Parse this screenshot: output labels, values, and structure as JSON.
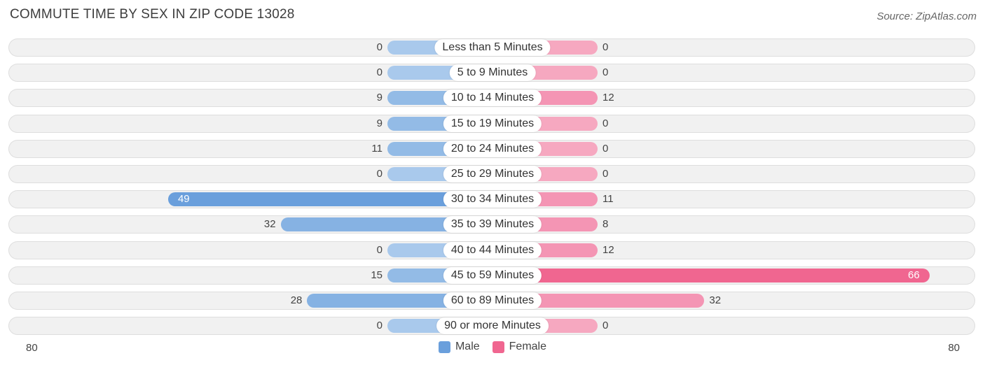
{
  "header": {
    "title": "COMMUTE TIME BY SEX IN ZIP CODE 13028",
    "source": "Source: ZipAtlas.com"
  },
  "colors": {
    "male_strong": "#6a9fdc",
    "male_light": "#a9c9ec",
    "female_strong": "#f06690",
    "female_light": "#f6a8c0"
  },
  "axis": {
    "left_label": "80",
    "right_label": "80"
  },
  "legend": {
    "male_label": "Male",
    "female_label": "Female"
  },
  "chart_data": {
    "type": "bar",
    "title": "COMMUTE TIME BY SEX IN ZIP CODE 13028",
    "orientation": "horizontal-diverging",
    "xlim": [
      -80,
      80
    ],
    "categories": [
      "Less than 5 Minutes",
      "5 to 9 Minutes",
      "10 to 14 Minutes",
      "15 to 19 Minutes",
      "20 to 24 Minutes",
      "25 to 29 Minutes",
      "30 to 34 Minutes",
      "35 to 39 Minutes",
      "40 to 44 Minutes",
      "45 to 59 Minutes",
      "60 to 89 Minutes",
      "90 or more Minutes"
    ],
    "series": [
      {
        "name": "Male",
        "values": [
          0,
          0,
          9,
          9,
          11,
          0,
          49,
          32,
          0,
          15,
          28,
          0
        ]
      },
      {
        "name": "Female",
        "values": [
          0,
          0,
          12,
          0,
          0,
          0,
          11,
          8,
          12,
          66,
          32,
          0
        ]
      }
    ],
    "legend_position": "bottom-center"
  }
}
